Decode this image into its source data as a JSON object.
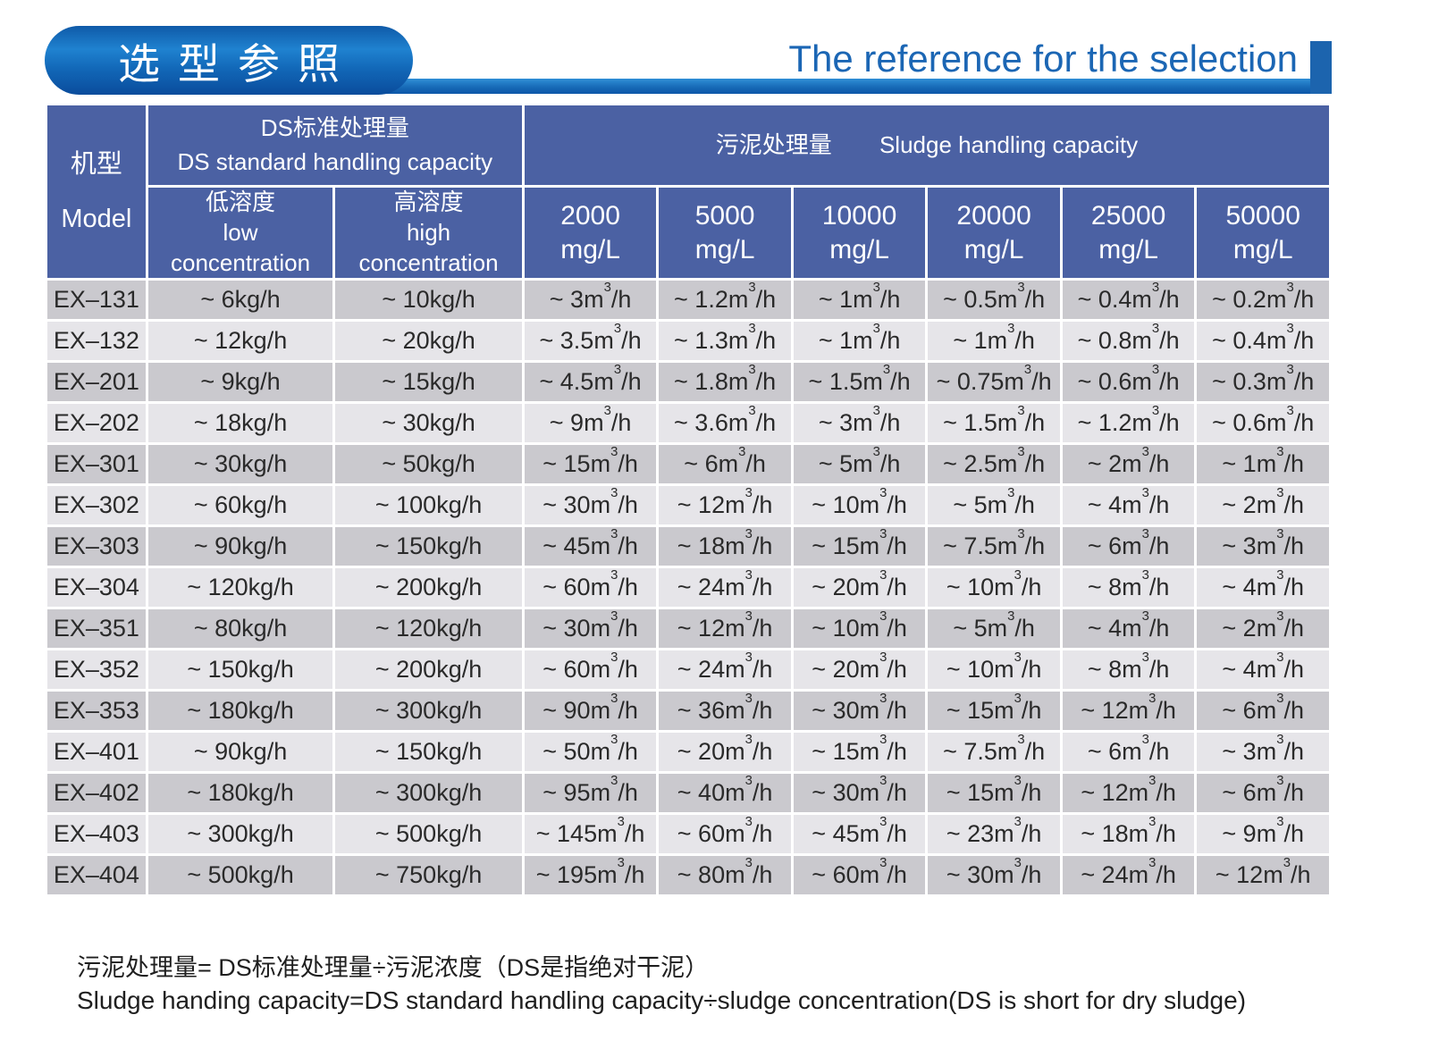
{
  "header": {
    "title_cn": "选型参照",
    "title_en": "The reference for the selection"
  },
  "colors": {
    "accent_blue": "#1b66b4",
    "table_header_blue": "#4b61a3",
    "row_dark_gray": "#cac9ce",
    "row_light_gray": "#e6e5e9",
    "pill_gradient_top": "#1f82d0",
    "pill_gradient_bottom": "#0a4c9c"
  },
  "table": {
    "model_header_cn": "机型",
    "model_header_en": "Model",
    "ds_group_cn": "DS标准处理量",
    "ds_group_en": "DS standard handling capacity",
    "sludge_group_cn": "污泥处理量",
    "sludge_group_en": "Sludge handling capacity",
    "ds_sub_columns": [
      {
        "cn": "低溶度",
        "en_line1": "low",
        "en_line2": "concentration"
      },
      {
        "cn": "高溶度",
        "en_line1": "high",
        "en_line2": "concentration"
      }
    ],
    "sludge_sub_columns": [
      {
        "value": "2000",
        "unit": "mg/L"
      },
      {
        "value": "5000",
        "unit": "mg/L"
      },
      {
        "value": "10000",
        "unit": "mg/L"
      },
      {
        "value": "20000",
        "unit": "mg/L"
      },
      {
        "value": "25000",
        "unit": "mg/L"
      },
      {
        "value": "50000",
        "unit": "mg/L"
      }
    ],
    "rows": [
      {
        "model": "EX–131",
        "low": "~ 6kg/h",
        "high": "~ 10kg/h",
        "values": [
          "~ 3m³/h",
          "~ 1.2m³/h",
          "~ 1m³/h",
          "~ 0.5m³/h",
          "~ 0.4m³/h",
          "~ 0.2m³/h"
        ]
      },
      {
        "model": "EX–132",
        "low": "~ 12kg/h",
        "high": "~ 20kg/h",
        "values": [
          "~ 3.5m³/h",
          "~ 1.3m³/h",
          "~ 1m³/h",
          "~ 1m³/h",
          "~ 0.8m³/h",
          "~ 0.4m³/h"
        ]
      },
      {
        "model": "EX–201",
        "low": "~ 9kg/h",
        "high": "~ 15kg/h",
        "values": [
          "~ 4.5m³/h",
          "~ 1.8m³/h",
          "~ 1.5m³/h",
          "~ 0.75m³/h",
          "~ 0.6m³/h",
          "~ 0.3m³/h"
        ]
      },
      {
        "model": "EX–202",
        "low": "~ 18kg/h",
        "high": "~ 30kg/h",
        "values": [
          "~ 9m³/h",
          "~ 3.6m³/h",
          "~ 3m³/h",
          "~ 1.5m³/h",
          "~ 1.2m³/h",
          "~ 0.6m³/h"
        ]
      },
      {
        "model": "EX–301",
        "low": "~ 30kg/h",
        "high": "~ 50kg/h",
        "values": [
          "~ 15m³/h",
          "~ 6m³/h",
          "~ 5m³/h",
          "~ 2.5m³/h",
          "~ 2m³/h",
          "~ 1m³/h"
        ]
      },
      {
        "model": "EX–302",
        "low": "~ 60kg/h",
        "high": "~ 100kg/h",
        "values": [
          "~ 30m³/h",
          "~ 12m³/h",
          "~ 10m³/h",
          "~ 5m³/h",
          "~ 4m³/h",
          "~ 2m³/h"
        ]
      },
      {
        "model": "EX–303",
        "low": "~ 90kg/h",
        "high": "~ 150kg/h",
        "values": [
          "~ 45m³/h",
          "~ 18m³/h",
          "~ 15m³/h",
          "~ 7.5m³/h",
          "~ 6m³/h",
          "~ 3m³/h"
        ]
      },
      {
        "model": "EX–304",
        "low": "~ 120kg/h",
        "high": "~ 200kg/h",
        "values": [
          "~ 60m³/h",
          "~ 24m³/h",
          "~ 20m³/h",
          "~ 10m³/h",
          "~ 8m³/h",
          "~ 4m³/h"
        ]
      },
      {
        "model": "EX–351",
        "low": "~ 80kg/h",
        "high": "~ 120kg/h",
        "values": [
          "~ 30m³/h",
          "~ 12m³/h",
          "~ 10m³/h",
          "~ 5m³/h",
          "~ 4m³/h",
          "~ 2m³/h"
        ]
      },
      {
        "model": "EX–352",
        "low": "~ 150kg/h",
        "high": "~ 200kg/h",
        "values": [
          "~ 60m³/h",
          "~ 24m³/h",
          "~ 20m³/h",
          "~ 10m³/h",
          "~ 8m³/h",
          "~ 4m³/h"
        ]
      },
      {
        "model": "EX–353",
        "low": "~ 180kg/h",
        "high": "~ 300kg/h",
        "values": [
          "~ 90m³/h",
          "~ 36m³/h",
          "~ 30m³/h",
          "~ 15m³/h",
          "~ 12m³/h",
          "~ 6m³/h"
        ]
      },
      {
        "model": "EX–401",
        "low": "~ 90kg/h",
        "high": "~ 150kg/h",
        "values": [
          "~ 50m³/h",
          "~ 20m³/h",
          "~ 15m³/h",
          "~ 7.5m³/h",
          "~ 6m³/h",
          "~ 3m³/h"
        ]
      },
      {
        "model": "EX–402",
        "low": "~ 180kg/h",
        "high": "~ 300kg/h",
        "values": [
          "~ 95m³/h",
          "~ 40m³/h",
          "~ 30m³/h",
          "~ 15m³/h",
          "~ 12m³/h",
          "~ 6m³/h"
        ]
      },
      {
        "model": "EX–403",
        "low": "~ 300kg/h",
        "high": "~ 500kg/h",
        "values": [
          "~ 145m³/h",
          "~ 60m³/h",
          "~ 45m³/h",
          "~ 23m³/h",
          "~ 18m³/h",
          "~ 9m³/h"
        ]
      },
      {
        "model": "EX–404",
        "low": "~ 500kg/h",
        "high": "~ 750kg/h",
        "values": [
          "~ 195m³/h",
          "~ 80m³/h",
          "~ 60m³/h",
          "~ 30m³/h",
          "~ 24m³/h",
          "~ 12m³/h"
        ]
      }
    ]
  },
  "footnote": {
    "cn": "污泥处理量= DS标准处理量÷污泥浓度（DS是指绝对干泥）",
    "en": "Sludge handing capacity=DS standard handling capacity÷sludge concentration(DS is short for dry sludge)"
  }
}
